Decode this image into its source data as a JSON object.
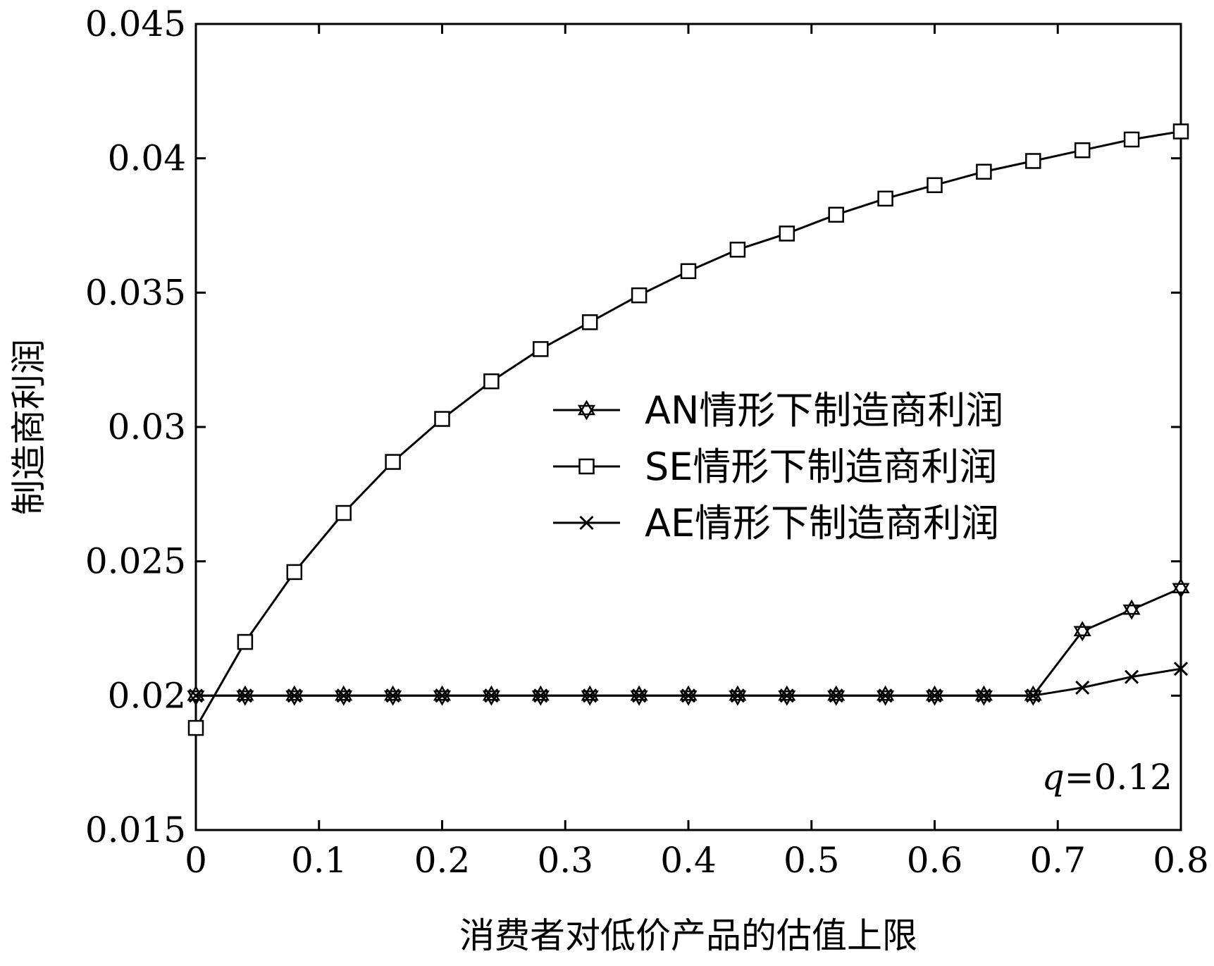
{
  "chart_data": {
    "type": "line",
    "title": "",
    "xlabel": "消费者对低价产品的估值上限",
    "ylabel": "制造商利润",
    "xlim": [
      0,
      0.8
    ],
    "ylim": [
      0.015,
      0.045
    ],
    "xticks": [
      0,
      0.1,
      0.2,
      0.3,
      0.4,
      0.5,
      0.6,
      0.7,
      0.8
    ],
    "xtick_labels": [
      "0",
      "0.1",
      "0.2",
      "0.3",
      "0.4",
      "0.5",
      "0.6",
      "0.7",
      "0.8"
    ],
    "yticks": [
      0.015,
      0.02,
      0.025,
      0.03,
      0.035,
      0.04,
      0.045
    ],
    "ytick_labels": [
      "0.015",
      "0.02",
      "0.025",
      "0.03",
      "0.035",
      "0.04",
      "0.045"
    ],
    "grid": false,
    "legend_position": "center-right",
    "annotation": {
      "variable": "q",
      "text": "=0.12"
    },
    "x": [
      0,
      0.04,
      0.08,
      0.12,
      0.16,
      0.2,
      0.24,
      0.28,
      0.32,
      0.36,
      0.4,
      0.44,
      0.48,
      0.52,
      0.56,
      0.6,
      0.64,
      0.68,
      0.72,
      0.76,
      0.8
    ],
    "series": [
      {
        "name": "AN情形下制造商利润",
        "marker": "star",
        "values": [
          0.02,
          0.02,
          0.02,
          0.02,
          0.02,
          0.02,
          0.02,
          0.02,
          0.02,
          0.02,
          0.02,
          0.02,
          0.02,
          0.02,
          0.02,
          0.02,
          0.02,
          0.02,
          0.0224,
          0.0232,
          0.024
        ]
      },
      {
        "name": "SE情形下制造商利润",
        "marker": "square",
        "values": [
          0.0188,
          0.022,
          0.0246,
          0.0268,
          0.0287,
          0.0303,
          0.0317,
          0.0329,
          0.0339,
          0.0349,
          0.0358,
          0.0366,
          0.0372,
          0.0379,
          0.0385,
          0.039,
          0.0395,
          0.0399,
          0.0403,
          0.0407,
          0.041
        ]
      },
      {
        "name": "AE情形下制造商利润",
        "marker": "x",
        "values": [
          0.02,
          0.02,
          0.02,
          0.02,
          0.02,
          0.02,
          0.02,
          0.02,
          0.02,
          0.02,
          0.02,
          0.02,
          0.02,
          0.02,
          0.02,
          0.02,
          0.02,
          0.02,
          0.0203,
          0.0207,
          0.021
        ]
      }
    ]
  }
}
